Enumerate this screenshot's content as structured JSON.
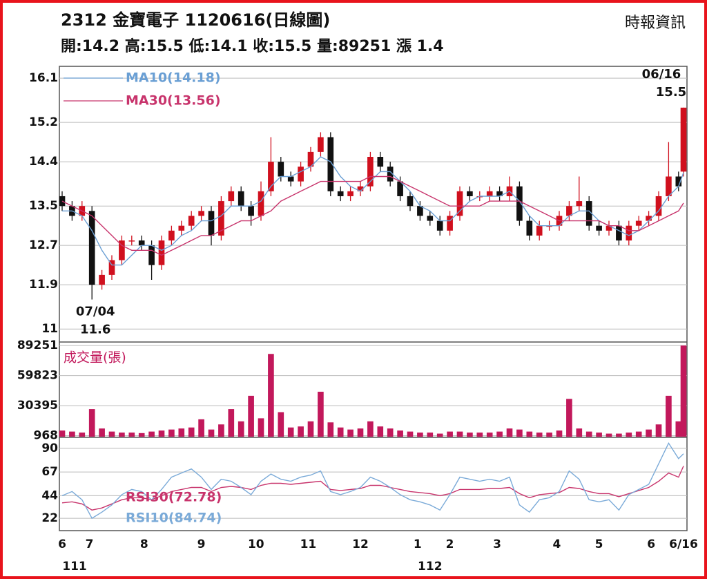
{
  "header": {
    "title": "2312  金寶電子 1120616(日線圖)",
    "source": "時報資訊",
    "quote": "開:14.2 高:15.5 低:14.1 收:15.5 量:89251 漲 1.4"
  },
  "chart_data": [
    {
      "type": "candlestick",
      "x": [
        0,
        4,
        8,
        12,
        16,
        20,
        24,
        28,
        32,
        36,
        40,
        44,
        48,
        52,
        56,
        60,
        64,
        68,
        72,
        76,
        80,
        84,
        88,
        92,
        96,
        100,
        104,
        108,
        112,
        116,
        120,
        124,
        128,
        132,
        136,
        140,
        144,
        148,
        152,
        156,
        160,
        164,
        168,
        172,
        176,
        180,
        184,
        188,
        192,
        196,
        200,
        204,
        208,
        212,
        216,
        220,
        224,
        228,
        232,
        236,
        240,
        244,
        248,
        250
      ],
      "open": [
        13.7,
        13.5,
        13.3,
        13.4,
        11.9,
        12.1,
        12.4,
        12.8,
        12.8,
        12.7,
        12.3,
        12.8,
        13.0,
        13.1,
        13.3,
        13.4,
        12.9,
        13.6,
        13.8,
        13.5,
        13.3,
        13.8,
        14.4,
        14.1,
        14.0,
        14.3,
        14.6,
        14.9,
        13.8,
        13.7,
        13.8,
        13.9,
        14.5,
        14.3,
        14.0,
        13.7,
        13.5,
        13.3,
        13.2,
        13.0,
        13.3,
        13.8,
        13.7,
        13.7,
        13.8,
        13.7,
        13.9,
        13.2,
        12.9,
        13.1,
        13.1,
        13.3,
        13.5,
        13.6,
        13.1,
        13.0,
        13.1,
        12.8,
        13.1,
        13.2,
        13.3,
        13.7,
        14.1,
        14.2
      ],
      "high": [
        13.8,
        13.6,
        13.6,
        13.5,
        12.2,
        12.5,
        12.9,
        12.9,
        12.9,
        12.8,
        12.9,
        13.1,
        13.2,
        13.4,
        13.5,
        13.5,
        13.7,
        13.9,
        13.9,
        13.6,
        14.0,
        14.9,
        14.5,
        14.2,
        14.4,
        14.7,
        15.0,
        15.0,
        13.9,
        13.9,
        14.0,
        14.6,
        14.6,
        14.4,
        14.1,
        13.8,
        13.6,
        13.4,
        13.3,
        13.4,
        13.9,
        13.9,
        13.8,
        13.9,
        13.9,
        14.1,
        14.0,
        13.3,
        13.2,
        13.2,
        13.4,
        13.6,
        14.1,
        13.7,
        13.2,
        13.2,
        13.2,
        13.2,
        13.3,
        13.4,
        13.8,
        14.8,
        14.2,
        15.5
      ],
      "low": [
        13.4,
        13.2,
        13.2,
        11.6,
        11.8,
        12.0,
        12.3,
        12.7,
        12.6,
        12.0,
        12.2,
        12.7,
        12.9,
        13.0,
        13.2,
        12.7,
        12.8,
        13.5,
        13.4,
        13.1,
        13.2,
        13.7,
        14.0,
        13.9,
        13.9,
        14.2,
        14.5,
        13.7,
        13.6,
        13.6,
        13.7,
        13.8,
        14.2,
        13.9,
        13.6,
        13.4,
        13.2,
        13.1,
        12.9,
        12.9,
        13.2,
        13.6,
        13.6,
        13.6,
        13.6,
        13.6,
        13.1,
        12.8,
        12.8,
        13.0,
        13.0,
        13.2,
        13.4,
        13.0,
        12.9,
        12.9,
        12.7,
        12.7,
        13.0,
        13.1,
        13.2,
        13.6,
        13.8,
        14.1
      ],
      "close": [
        13.5,
        13.3,
        13.5,
        11.9,
        12.1,
        12.4,
        12.8,
        12.8,
        12.7,
        12.3,
        12.8,
        13.0,
        13.1,
        13.3,
        13.4,
        12.9,
        13.6,
        13.8,
        13.5,
        13.3,
        13.8,
        14.4,
        14.1,
        14.0,
        14.3,
        14.6,
        14.9,
        13.8,
        13.7,
        13.8,
        13.9,
        14.5,
        14.3,
        14.0,
        13.7,
        13.5,
        13.3,
        13.2,
        13.0,
        13.3,
        13.8,
        13.7,
        13.7,
        13.8,
        13.7,
        13.9,
        13.2,
        12.9,
        13.1,
        13.1,
        13.3,
        13.5,
        13.6,
        13.1,
        13.0,
        13.1,
        12.8,
        13.1,
        13.2,
        13.3,
        13.7,
        14.1,
        13.9,
        15.5
      ],
      "up_color": "#d0101e",
      "down_color": "#111111",
      "series": [
        {
          "name": "MA10(14.18)",
          "color": "#6a9fd4",
          "values": [
            13.4,
            13.4,
            13.3,
            13.0,
            12.6,
            12.3,
            12.3,
            12.5,
            12.7,
            12.7,
            12.6,
            12.7,
            12.9,
            13.0,
            13.2,
            13.2,
            13.3,
            13.5,
            13.5,
            13.5,
            13.6,
            13.9,
            14.1,
            14.1,
            14.2,
            14.3,
            14.5,
            14.4,
            14.1,
            13.9,
            13.8,
            14.0,
            14.2,
            14.2,
            14.0,
            13.8,
            13.5,
            13.4,
            13.2,
            13.2,
            13.4,
            13.6,
            13.7,
            13.7,
            13.7,
            13.8,
            13.6,
            13.3,
            13.1,
            13.1,
            13.1,
            13.3,
            13.4,
            13.4,
            13.2,
            13.1,
            13.0,
            12.9,
            13.0,
            13.2,
            13.4,
            13.7,
            13.9,
            14.18
          ]
        },
        {
          "name": "MA30(13.56)",
          "color": "#c8346c",
          "values": [
            13.6,
            13.5,
            13.4,
            13.3,
            13.1,
            12.9,
            12.7,
            12.6,
            12.6,
            12.6,
            12.5,
            12.6,
            12.7,
            12.8,
            12.9,
            12.9,
            13.0,
            13.1,
            13.2,
            13.2,
            13.3,
            13.4,
            13.6,
            13.7,
            13.8,
            13.9,
            14.0,
            14.0,
            14.0,
            14.0,
            14.0,
            14.1,
            14.1,
            14.1,
            14.0,
            13.9,
            13.8,
            13.7,
            13.6,
            13.5,
            13.5,
            13.5,
            13.5,
            13.6,
            13.6,
            13.6,
            13.6,
            13.5,
            13.4,
            13.3,
            13.2,
            13.2,
            13.2,
            13.2,
            13.2,
            13.1,
            13.1,
            13.0,
            13.0,
            13.1,
            13.2,
            13.3,
            13.4,
            13.56
          ]
        }
      ],
      "annotations": [
        {
          "date": "07/04",
          "value": 11.6,
          "x": 12
        },
        {
          "date": "06/16",
          "value": 15.5,
          "x": 250
        }
      ],
      "xlim": [
        0,
        250
      ],
      "ylim": [
        10.75,
        16.34
      ],
      "yticks": [
        11.0,
        11.9,
        12.7,
        13.5,
        14.4,
        15.2,
        16.1
      ],
      "grid": true
    },
    {
      "type": "bar",
      "x": [
        0,
        4,
        8,
        12,
        16,
        20,
        24,
        28,
        32,
        36,
        40,
        44,
        48,
        52,
        56,
        60,
        64,
        68,
        72,
        76,
        80,
        84,
        88,
        92,
        96,
        100,
        104,
        108,
        112,
        116,
        120,
        124,
        128,
        132,
        136,
        140,
        144,
        148,
        152,
        156,
        160,
        164,
        168,
        172,
        176,
        180,
        184,
        188,
        192,
        196,
        200,
        204,
        208,
        212,
        216,
        220,
        224,
        228,
        232,
        236,
        240,
        244,
        248,
        250
      ],
      "series": [
        {
          "name": "成交量(張)",
          "color": "#c2185b",
          "values": [
            6000,
            5000,
            4000,
            27000,
            8000,
            5000,
            4000,
            4000,
            3500,
            5000,
            6000,
            7000,
            8000,
            9000,
            17000,
            7000,
            12000,
            27000,
            15000,
            40000,
            18000,
            81000,
            24000,
            9000,
            10000,
            15000,
            44000,
            14000,
            9000,
            7000,
            8000,
            15000,
            10000,
            8000,
            6000,
            5000,
            4000,
            4000,
            3000,
            5000,
            5000,
            4000,
            4000,
            4000,
            5000,
            8000,
            7000,
            5000,
            4000,
            4000,
            6000,
            37000,
            8000,
            5000,
            4000,
            3000,
            3000,
            4000,
            5000,
            7000,
            12000,
            40000,
            15000,
            89251
          ]
        }
      ],
      "xlim": [
        0,
        250
      ],
      "ylim": [
        0,
        92000
      ],
      "yticks": [
        968,
        30395,
        59823,
        89251
      ],
      "grid": true
    },
    {
      "type": "line",
      "x": [
        0,
        4,
        8,
        12,
        16,
        20,
        24,
        28,
        32,
        36,
        40,
        44,
        48,
        52,
        56,
        60,
        64,
        68,
        72,
        76,
        80,
        84,
        88,
        92,
        96,
        100,
        104,
        108,
        112,
        116,
        120,
        124,
        128,
        132,
        136,
        140,
        144,
        148,
        152,
        156,
        160,
        164,
        168,
        172,
        176,
        180,
        184,
        188,
        192,
        196,
        200,
        204,
        208,
        212,
        216,
        220,
        224,
        228,
        232,
        236,
        240,
        244,
        248,
        250
      ],
      "series": [
        {
          "name": "RSI30(72.78)",
          "color": "#c8346c",
          "values": [
            37,
            38,
            36,
            30,
            32,
            36,
            40,
            42,
            42,
            40,
            44,
            48,
            50,
            52,
            52,
            48,
            52,
            53,
            52,
            50,
            54,
            56,
            56,
            55,
            56,
            57,
            58,
            50,
            49,
            50,
            51,
            54,
            54,
            52,
            50,
            48,
            47,
            46,
            44,
            46,
            50,
            50,
            50,
            51,
            51,
            52,
            46,
            42,
            45,
            46,
            47,
            52,
            51,
            48,
            46,
            46,
            43,
            46,
            49,
            52,
            58,
            66,
            62,
            72.78
          ]
        },
        {
          "name": "RSI10(84.74)",
          "color": "#7aaad8",
          "values": [
            44,
            48,
            40,
            22,
            28,
            35,
            45,
            50,
            48,
            40,
            50,
            62,
            66,
            70,
            62,
            50,
            60,
            58,
            52,
            45,
            58,
            65,
            60,
            58,
            62,
            64,
            68,
            48,
            45,
            48,
            52,
            62,
            58,
            52,
            45,
            40,
            38,
            35,
            30,
            45,
            62,
            60,
            58,
            60,
            58,
            62,
            35,
            28,
            40,
            42,
            48,
            68,
            60,
            40,
            38,
            40,
            30,
            45,
            50,
            55,
            75,
            95,
            80,
            84.74
          ]
        }
      ],
      "xlim": [
        0,
        250
      ],
      "ylim": [
        10,
        100
      ],
      "yticks": [
        22,
        44,
        67,
        90
      ],
      "grid": true,
      "xticks": [
        {
          "value": 0,
          "label": "6"
        },
        {
          "value": 11,
          "label": "7"
        },
        {
          "value": 33,
          "label": "8"
        },
        {
          "value": 56,
          "label": "9"
        },
        {
          "value": 78,
          "label": "10"
        },
        {
          "value": 99,
          "label": "11"
        },
        {
          "value": 120,
          "label": "12"
        },
        {
          "value": 143,
          "label": "1"
        },
        {
          "value": 156,
          "label": "2"
        },
        {
          "value": 175,
          "label": "3"
        },
        {
          "value": 199,
          "label": "4"
        },
        {
          "value": 216,
          "label": "5"
        },
        {
          "value": 237,
          "label": "6"
        },
        {
          "value": 250,
          "label": "6/16"
        }
      ],
      "year_labels": [
        {
          "value": 0,
          "label": "111"
        },
        {
          "value": 143,
          "label": "112"
        }
      ]
    }
  ]
}
